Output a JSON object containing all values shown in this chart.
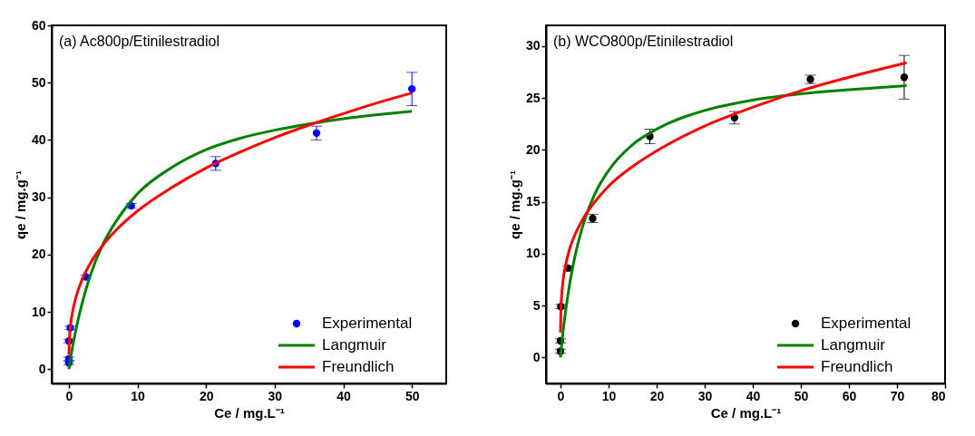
{
  "chart_data": [
    {
      "type": "scatter",
      "annotations": [
        "(a) Ac800p/Etinilestradiol"
      ],
      "xlabel": "Ce / mg.L⁻¹",
      "ylabel": "qe / mg.g⁻¹",
      "xlim": [
        -2.5,
        55
      ],
      "ylim": [
        -2.5,
        60
      ],
      "xticks": [
        0,
        10,
        20,
        30,
        40,
        50
      ],
      "yticks": [
        0,
        10,
        20,
        30,
        40,
        50,
        60
      ],
      "legend": "bottom right",
      "series": [
        {
          "name": "Experimental",
          "marker": "circle",
          "color": "#0000ff",
          "x": [
            0,
            0,
            0,
            0.2,
            2.5,
            9.1,
            21.4,
            36.1,
            50
          ],
          "values": [
            1.1,
            1.8,
            4.9,
            7.2,
            16.1,
            28.5,
            35.9,
            41.2,
            48.9
          ],
          "errors": [
            0.3,
            0.3,
            0.3,
            0.3,
            0.3,
            0.4,
            1.2,
            1.2,
            2.9
          ]
        },
        {
          "name": "Langmuir",
          "type": "line",
          "color": "#008000",
          "x": [
            0,
            0.5,
            1,
            2,
            3,
            5,
            7,
            10,
            15,
            20,
            25,
            30,
            35,
            40,
            45,
            50
          ],
          "values": [
            0,
            3.6,
            6.7,
            11.8,
            15.9,
            21.9,
            26.0,
            30.6,
            35.2,
            38.3,
            40.3,
            41.7,
            42.8,
            43.7,
            44.4,
            45.0
          ]
        },
        {
          "name": "Freundlich",
          "type": "line",
          "color": "#ff0000",
          "x": [
            0.01,
            0.1,
            0.5,
            1,
            2,
            3,
            5,
            7,
            10,
            15,
            20,
            25,
            30,
            35,
            40,
            45,
            50
          ],
          "values": [
            2.5,
            5.6,
            9.7,
            12.4,
            15.8,
            18.2,
            21.7,
            24.4,
            27.6,
            31.7,
            35.1,
            37.9,
            40.4,
            42.6,
            44.6,
            46.5,
            48.2
          ]
        }
      ]
    },
    {
      "type": "scatter",
      "annotations": [
        "(b) WCO800p/Etinilestradiol"
      ],
      "xlabel": "Ce / mg.L⁻¹",
      "ylabel": "qe / mg.g⁻¹",
      "xlim": [
        -3,
        80
      ],
      "ylim": [
        -2.5,
        32
      ],
      "xticks": [
        0,
        10,
        20,
        30,
        40,
        50,
        60,
        70,
        80
      ],
      "yticks": [
        0,
        5,
        10,
        15,
        20,
        25,
        30
      ],
      "legend": "bottom right",
      "series": [
        {
          "name": "Experimental",
          "marker": "circle",
          "color": "#000000",
          "x": [
            0,
            0,
            0.1,
            1.6,
            6.7,
            18.6,
            36.2,
            52.0,
            71.5
          ],
          "values": [
            0.6,
            1.6,
            4.9,
            8.6,
            13.4,
            21.3,
            23.1,
            26.8,
            27.0
          ],
          "errors": [
            0.2,
            0.2,
            0.2,
            0.2,
            0.4,
            0.7,
            0.6,
            0.4,
            2.1
          ]
        },
        {
          "name": "Langmuir",
          "type": "line",
          "color": "#008000",
          "x": [
            0,
            0.5,
            1,
            2,
            3,
            5,
            7,
            10,
            15,
            20,
            30,
            40,
            50,
            60,
            72
          ],
          "values": [
            0,
            2.3,
            4.2,
            7.3,
            9.7,
            13.2,
            15.6,
            18.0,
            20.5,
            22.0,
            23.8,
            24.8,
            25.4,
            25.8,
            26.2
          ]
        },
        {
          "name": "Freundlich",
          "type": "line",
          "color": "#ff0000",
          "x": [
            0.01,
            0.1,
            0.5,
            1,
            2,
            3,
            5,
            7,
            10,
            15,
            20,
            30,
            40,
            50,
            60,
            72
          ],
          "values": [
            2.4,
            4.6,
            7.2,
            8.7,
            10.6,
            11.8,
            13.6,
            14.9,
            16.5,
            18.4,
            19.9,
            22.3,
            24.1,
            25.7,
            27.0,
            28.4
          ]
        }
      ]
    }
  ]
}
